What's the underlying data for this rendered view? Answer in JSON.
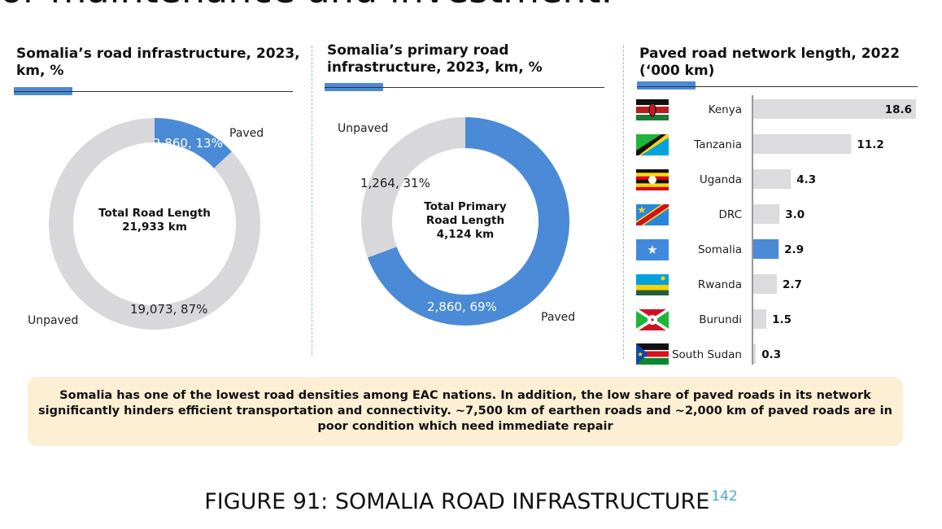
{
  "top_text": "or maintenance and investment.",
  "colors": {
    "paved": "#4a8ad6",
    "unpaved": "#d8d8da",
    "bar": "#dcdcdf",
    "highlight": "#4a8ad6"
  },
  "chart_data": [
    {
      "type": "pie",
      "title": "Somalia’s road infrastructure, 2023, km, %",
      "center_label": [
        "Total Road Length",
        "21,933 km"
      ],
      "slices": [
        {
          "name": "Paved",
          "value": 2860,
          "percent": 13,
          "label": "2,860, 13%"
        },
        {
          "name": "Unpaved",
          "value": 19073,
          "percent": 87,
          "label": "19,073, 87%"
        }
      ]
    },
    {
      "type": "pie",
      "title": "Somalia’s primary road infrastructure, 2023, km, %",
      "center_label": [
        "Total Primary",
        "Road Length",
        "4,124 km"
      ],
      "slices": [
        {
          "name": "Paved",
          "value": 2860,
          "percent": 69,
          "label": "2,860, 69%"
        },
        {
          "name": "Unpaved",
          "value": 1264,
          "percent": 31,
          "label": "1,264, 31%"
        }
      ]
    },
    {
      "type": "bar",
      "orientation": "horizontal",
      "title": "Paved road network length, 2022 (‘000 km)",
      "categories": [
        "Kenya",
        "Tanzania",
        "Uganda",
        "DRC",
        "Somalia",
        "Rwanda",
        "Burundi",
        "South Sudan"
      ],
      "values": [
        18.6,
        11.2,
        4.3,
        3.0,
        2.9,
        2.7,
        1.5,
        0.3
      ],
      "value_labels": [
        "18.6",
        "11.2",
        "4.3",
        "3.0",
        "2.9",
        "2.7",
        "1.5",
        "0.3"
      ],
      "highlight": "Somalia",
      "flags": [
        "kenya-flag-icon",
        "tanzania-flag-icon",
        "uganda-flag-icon",
        "drc-flag-icon",
        "somalia-flag-icon",
        "rwanda-flag-icon",
        "burundi-flag-icon",
        "south-sudan-flag-icon"
      ]
    }
  ],
  "callout": "Somalia has one of the lowest road densities among EAC nations. In addition, the low share of paved roads in its network significantly hinders efficient transportation and connectivity. ~7,500 km of earthen roads and ~2,000 km of paved roads are in poor condition which need immediate repair",
  "caption": {
    "text": "FIGURE 91: SOMALIA ROAD INFRASTRUCTURE",
    "footnote": "142"
  }
}
